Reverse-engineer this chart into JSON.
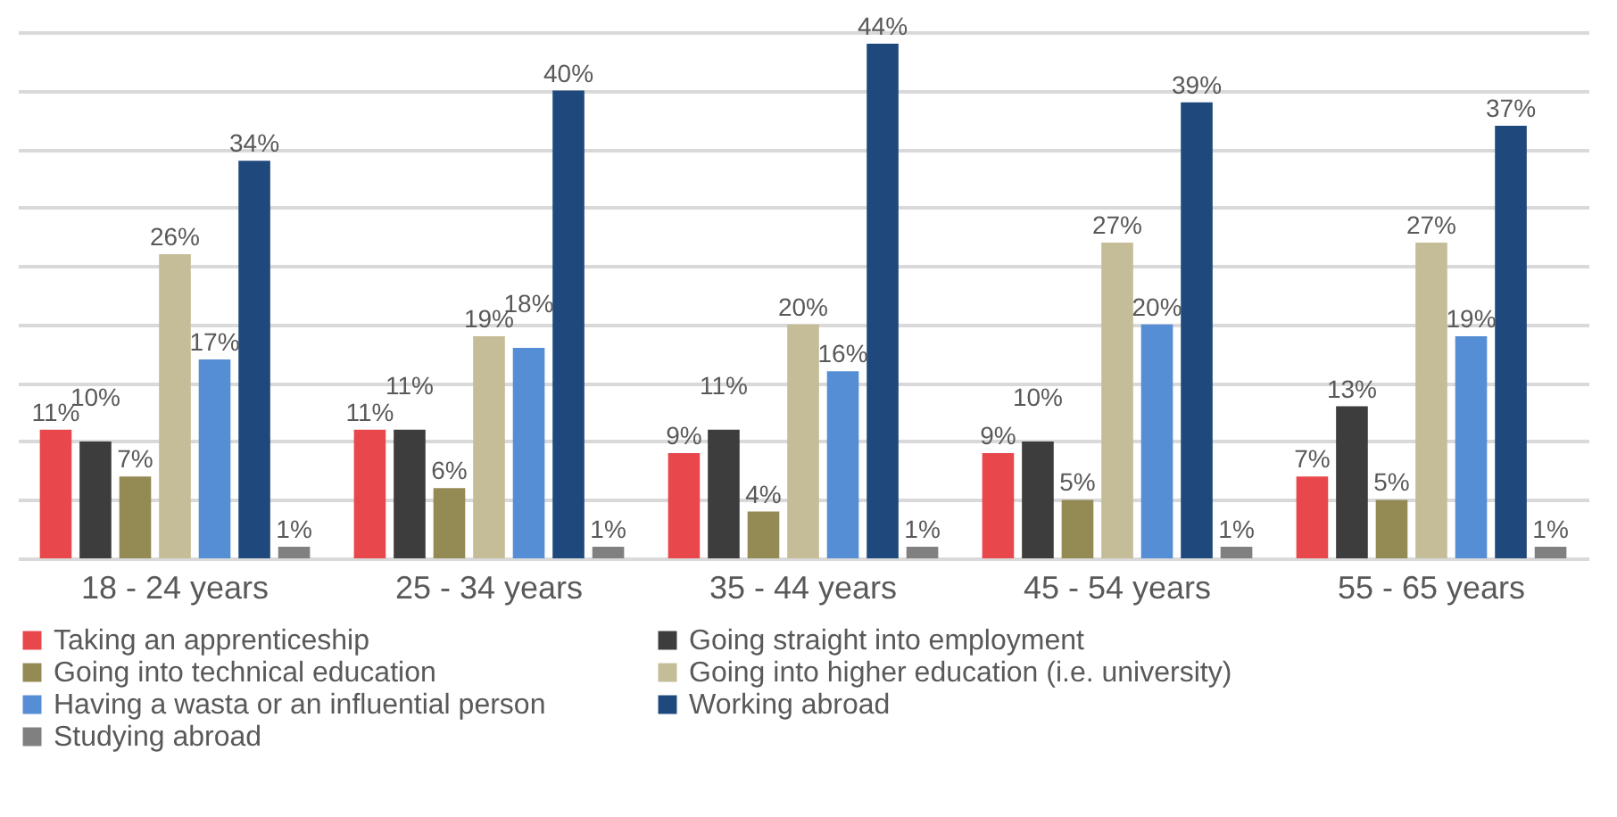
{
  "chart_data": {
    "type": "bar",
    "categories": [
      "18 - 24 years",
      "25 - 34 years",
      "35 - 44 years",
      "45 - 54 years",
      "55 - 65 years"
    ],
    "series": [
      {
        "name": "Taking an apprenticeship",
        "color": "#e8474b",
        "values": [
          11,
          11,
          9,
          9,
          7
        ],
        "value_labels": [
          "11%",
          "11%",
          "9%",
          "9%",
          "7%"
        ]
      },
      {
        "name": "Going straight into employment",
        "color": "#3d3d3d",
        "values": [
          10,
          11,
          11,
          10,
          13
        ],
        "value_labels": [
          "10%",
          "11%",
          "11%",
          "10%",
          "13%"
        ]
      },
      {
        "name": "Going into technical education",
        "color": "#948a54",
        "values": [
          7,
          6,
          4,
          5,
          5
        ],
        "value_labels": [
          "7%",
          "6%",
          "4%",
          "5%",
          "5%"
        ]
      },
      {
        "name": "Going into higher education (i.e. university)",
        "color": "#c4bd97",
        "values": [
          26,
          19,
          20,
          27,
          27
        ],
        "value_labels": [
          "26%",
          "19%",
          "20%",
          "27%",
          "27%"
        ]
      },
      {
        "name": "Having a wasta or an influential person",
        "color": "#558ed5",
        "values": [
          17,
          18,
          16,
          20,
          19
        ],
        "value_labels": [
          "17%",
          "18%",
          "16%",
          "20%",
          "19%"
        ]
      },
      {
        "name": "Working abroad",
        "color": "#1f497d",
        "values": [
          34,
          40,
          44,
          39,
          37
        ],
        "value_labels": [
          "34%",
          "40%",
          "44%",
          "39%",
          "37%"
        ]
      },
      {
        "name": "Studying abroad",
        "color": "#808080",
        "values": [
          1,
          1,
          1,
          1,
          1
        ],
        "value_labels": [
          "1%",
          "1%",
          "1%",
          "1%",
          "1%"
        ]
      }
    ],
    "tick_labels": "x",
    "grid": "y",
    "legend": "bottom"
  }
}
